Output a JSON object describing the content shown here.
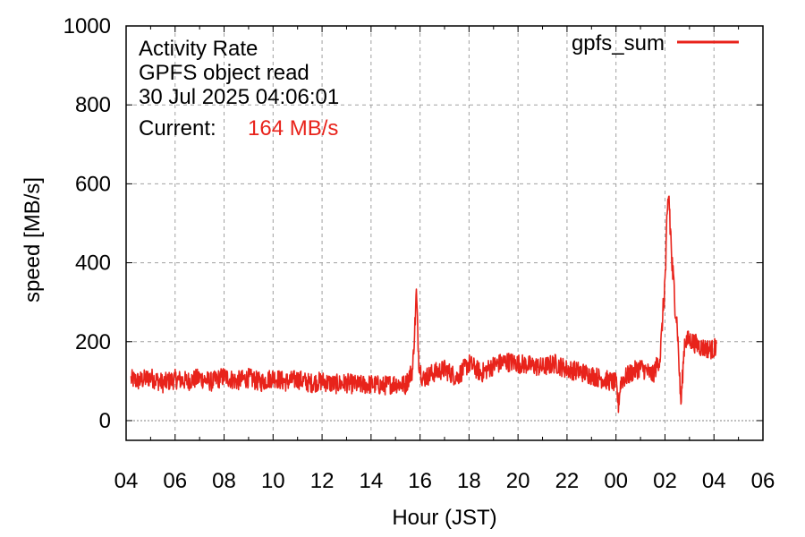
{
  "chart_data": {
    "type": "line",
    "title_lines": [
      "Activity Rate",
      "GPFS object read",
      "30 Jul 2025 04:06:01"
    ],
    "current_label": "Current:",
    "current_value": "164 MB/s",
    "xlabel": "Hour (JST)",
    "ylabel": "speed [MB/s]",
    "x_range_hours": [
      0,
      26
    ],
    "ylim": [
      -50,
      1000
    ],
    "x_ticks": [
      {
        "h": 0,
        "label": "04"
      },
      {
        "h": 2,
        "label": "06"
      },
      {
        "h": 4,
        "label": "08"
      },
      {
        "h": 6,
        "label": "10"
      },
      {
        "h": 8,
        "label": "12"
      },
      {
        "h": 10,
        "label": "14"
      },
      {
        "h": 12,
        "label": "16"
      },
      {
        "h": 14,
        "label": "18"
      },
      {
        "h": 16,
        "label": "20"
      },
      {
        "h": 18,
        "label": "22"
      },
      {
        "h": 20,
        "label": "00"
      },
      {
        "h": 22,
        "label": "02"
      },
      {
        "h": 24,
        "label": "04"
      },
      {
        "h": 26,
        "label": "06"
      }
    ],
    "y_ticks": [
      {
        "v": 0,
        "label": "0"
      },
      {
        "v": 200,
        "label": "200"
      },
      {
        "v": 400,
        "label": "400"
      },
      {
        "v": 600,
        "label": "600"
      },
      {
        "v": 800,
        "label": "800"
      },
      {
        "v": 1000,
        "label": "1000"
      }
    ],
    "grid": true,
    "legend_position": "top-right",
    "series": [
      {
        "name": "gpfs_sum",
        "color": "#e8231b",
        "points": [
          [
            0.2,
            105
          ],
          [
            0.5,
            100
          ],
          [
            1.0,
            110
          ],
          [
            1.5,
            95
          ],
          [
            2.0,
            105
          ],
          [
            2.5,
            100
          ],
          [
            3.0,
            108
          ],
          [
            3.5,
            98
          ],
          [
            4.0,
            112
          ],
          [
            4.5,
            100
          ],
          [
            5.0,
            108
          ],
          [
            5.5,
            97
          ],
          [
            6.0,
            110
          ],
          [
            6.5,
            98
          ],
          [
            7.0,
            105
          ],
          [
            7.5,
            95
          ],
          [
            8.0,
            100
          ],
          [
            8.5,
            92
          ],
          [
            9.0,
            95
          ],
          [
            9.5,
            90
          ],
          [
            10.0,
            92
          ],
          [
            10.5,
            88
          ],
          [
            11.0,
            95
          ],
          [
            11.4,
            90
          ],
          [
            11.7,
            130
          ],
          [
            11.85,
            320
          ],
          [
            11.95,
            150
          ],
          [
            12.1,
            105
          ],
          [
            12.5,
            120
          ],
          [
            13.0,
            130
          ],
          [
            13.5,
            110
          ],
          [
            14.0,
            145
          ],
          [
            14.5,
            120
          ],
          [
            15.0,
            140
          ],
          [
            15.5,
            150
          ],
          [
            16.0,
            145
          ],
          [
            16.5,
            140
          ],
          [
            17.0,
            135
          ],
          [
            17.5,
            145
          ],
          [
            18.0,
            130
          ],
          [
            18.5,
            125
          ],
          [
            19.0,
            115
          ],
          [
            19.5,
            105
          ],
          [
            20.0,
            95
          ],
          [
            20.1,
            40
          ],
          [
            20.2,
            100
          ],
          [
            20.6,
            120
          ],
          [
            21.0,
            135
          ],
          [
            21.5,
            115
          ],
          [
            21.8,
            160
          ],
          [
            22.0,
            350
          ],
          [
            22.15,
            580
          ],
          [
            22.3,
            380
          ],
          [
            22.5,
            240
          ],
          [
            22.65,
            40
          ],
          [
            22.8,
            200
          ],
          [
            23.0,
            205
          ],
          [
            23.5,
            185
          ],
          [
            24.0,
            180
          ],
          [
            24.1,
            195
          ]
        ]
      }
    ]
  }
}
